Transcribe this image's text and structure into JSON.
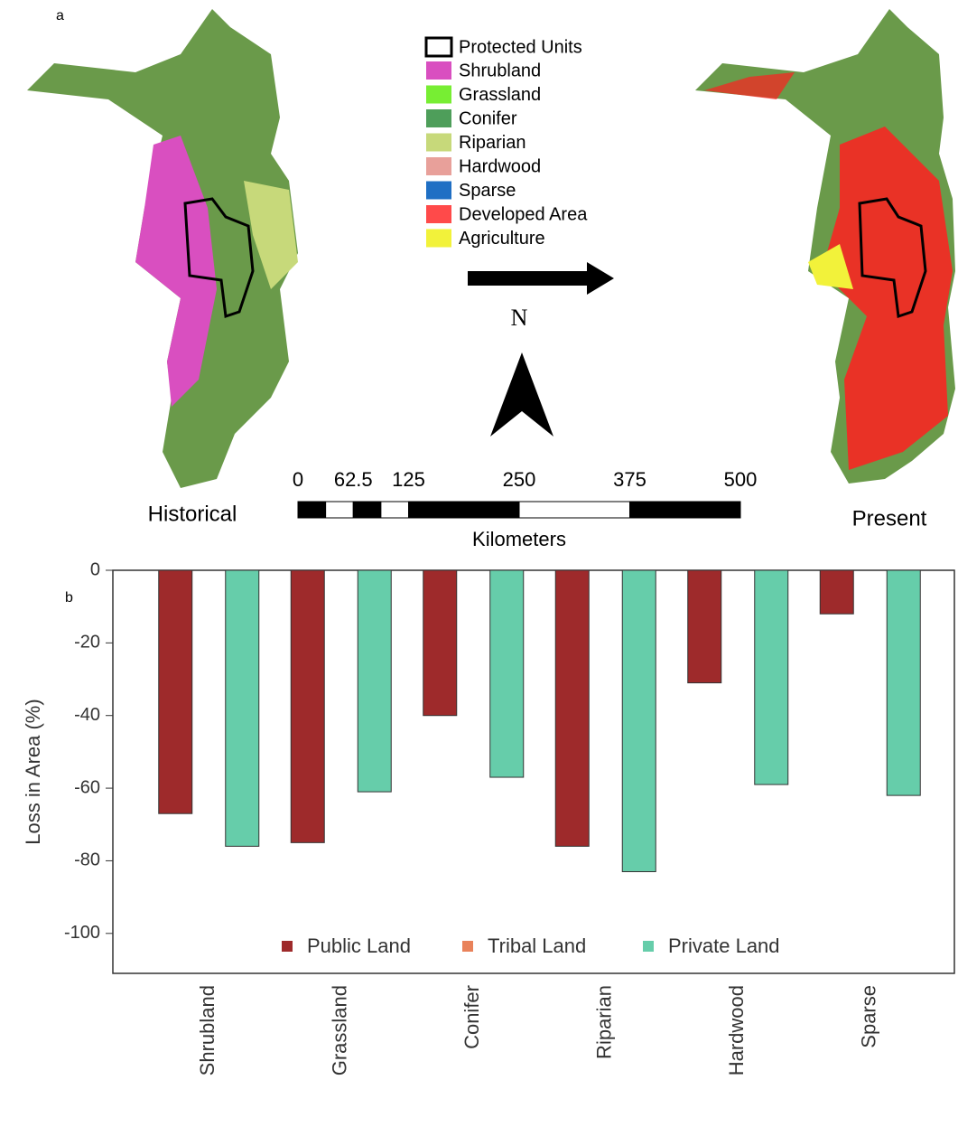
{
  "map_panel": {
    "label": "a",
    "legend_title": "Protected Units",
    "legend": [
      {
        "label": "Shrubland",
        "color": "#d94fc0"
      },
      {
        "label": "Grassland",
        "color": "#77ee33"
      },
      {
        "label": "Conifer",
        "color": "#4e9e5a"
      },
      {
        "label": "Riparian",
        "color": "#c7d97a"
      },
      {
        "label": "Hardwood",
        "color": "#e8a09a"
      },
      {
        "label": "Sparse",
        "color": "#1f6fc4"
      },
      {
        "label": "Developed Area",
        "color": "#ff4a4a"
      },
      {
        "label": "Agriculture",
        "color": "#f2f23a"
      }
    ],
    "north": "N",
    "scale_ticks": [
      0,
      62.5,
      125,
      250,
      375,
      500
    ],
    "scale_unit": "Kilometers",
    "left_map": "Historical",
    "right_map": "Present"
  },
  "chart_data": {
    "type": "bar",
    "panel_label": "b",
    "ylabel": "Loss in Area (%)",
    "categories": [
      "Shrubland",
      "Grassland",
      "Conifer",
      "Riparian",
      "Hardwood",
      "Sparse"
    ],
    "series": [
      {
        "name": "Public Land",
        "color": "#9e2a2b",
        "values": [
          -67,
          -75,
          -40,
          -76,
          -31,
          -12
        ]
      },
      {
        "name": "Tribal Land",
        "color": "#e9825a",
        "values": [
          null,
          null,
          null,
          null,
          null,
          null
        ]
      },
      {
        "name": "Private Land",
        "color": "#66cdaa",
        "values": [
          -76,
          -61,
          -57,
          -83,
          -59,
          -62
        ]
      }
    ],
    "ylim": [
      -111,
      0
    ],
    "yticks": [
      0,
      -20,
      -40,
      -60,
      -80,
      -100
    ],
    "legend_position": "bottom"
  }
}
